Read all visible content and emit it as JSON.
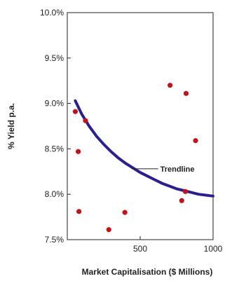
{
  "chart_data": {
    "type": "scatter",
    "title": "",
    "xlabel": "Market Capitalisation ($ Millions)",
    "ylabel": "% Yield p.a.",
    "xlim": [
      0,
      1000
    ],
    "ylim": [
      7.5,
      10.0
    ],
    "x_ticks": [
      500,
      1000
    ],
    "x_tick_labels": [
      "500",
      "1000"
    ],
    "y_ticks": [
      7.5,
      8.0,
      8.5,
      9.0,
      9.5,
      10.0
    ],
    "y_tick_labels": [
      "7.5%",
      "8.0%",
      "8.5%",
      "9.0%",
      "9.5%",
      "10.0%"
    ],
    "grid": false,
    "colors": {
      "points": "#c0141c",
      "trendline": "#2a1f8c"
    },
    "points": [
      {
        "x": 55,
        "y": 8.91
      },
      {
        "x": 125,
        "y": 8.81
      },
      {
        "x": 75,
        "y": 8.47
      },
      {
        "x": 80,
        "y": 7.81
      },
      {
        "x": 285,
        "y": 7.61
      },
      {
        "x": 395,
        "y": 7.8
      },
      {
        "x": 705,
        "y": 9.2
      },
      {
        "x": 815,
        "y": 9.11
      },
      {
        "x": 880,
        "y": 8.59
      },
      {
        "x": 810,
        "y": 8.03
      },
      {
        "x": 785,
        "y": 7.93
      }
    ],
    "trendline": {
      "x": [
        55,
        100,
        150,
        200,
        250,
        300,
        350,
        400,
        450,
        500,
        550,
        600,
        650,
        700,
        750,
        800,
        850,
        900,
        950,
        1000
      ],
      "y": [
        9.03,
        8.88,
        8.75,
        8.64,
        8.55,
        8.47,
        8.4,
        8.34,
        8.29,
        8.24,
        8.2,
        8.16,
        8.12,
        8.09,
        8.06,
        8.04,
        8.02,
        8.0,
        7.99,
        7.98
      ]
    },
    "annotation": {
      "text": "Trendline",
      "x": 450,
      "y": 8.28
    }
  }
}
